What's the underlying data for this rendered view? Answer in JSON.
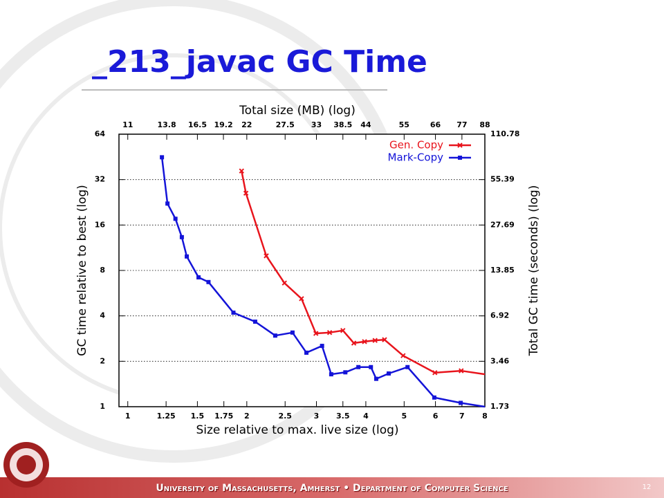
{
  "slide": {
    "title": "_213_javac GC Time",
    "footer": "University of Massachusetts, Amherst • Department of Computer Science",
    "page_number": "12"
  },
  "chart_data": {
    "type": "line",
    "xlabel": "Size relative to max. live size (log)",
    "ylabel": "GC time relative to best (log)",
    "x2label": "Total size (MB) (log)",
    "y2label": "Total GC time (seconds) (log)",
    "xlog": true,
    "ylog": true,
    "grid": true,
    "legend": "top right",
    "xlim": [
      0.95,
      8
    ],
    "xticks": [
      1,
      1.25,
      1.5,
      1.75,
      2,
      2.5,
      3,
      3.5,
      4,
      5,
      6,
      7,
      8
    ],
    "ylim": [
      1,
      64
    ],
    "yticks": [
      1,
      2,
      4,
      8,
      16,
      32,
      64
    ],
    "x2lim": [
      10.45,
      88
    ],
    "x2ticks": [
      11,
      13.8,
      16.5,
      19.2,
      22,
      27.5,
      33,
      38.5,
      44,
      55,
      66,
      77,
      88
    ],
    "y2lim": [
      1.73,
      110.78
    ],
    "y2ticks": [
      1.73,
      3.46,
      6.92,
      13.85,
      27.69,
      55.39,
      110.78
    ],
    "series": [
      {
        "name": "Gen. Copy",
        "color": "#e8141c",
        "marker": "x",
        "x": [
          1.94,
          1.99,
          2.24,
          2.49,
          2.75,
          2.99,
          3.24,
          3.5,
          3.73,
          3.97,
          4.22,
          4.46,
          4.97,
          5.98,
          6.97,
          8
        ],
        "values": [
          36.5,
          26,
          10,
          6.6,
          5.2,
          3.06,
          3.1,
          3.2,
          2.64,
          2.7,
          2.75,
          2.78,
          2.18,
          1.68,
          1.73,
          1.64
        ]
      },
      {
        "name": "Mark-Copy",
        "color": "#1414d8",
        "marker": "square",
        "x": [
          1.22,
          1.26,
          1.32,
          1.37,
          1.41,
          1.51,
          1.6,
          1.85,
          2.1,
          2.36,
          2.61,
          2.83,
          3.1,
          3.27,
          3.55,
          3.83,
          4.12,
          4.25,
          4.57,
          5.1,
          5.96,
          6.95,
          8
        ],
        "values": [
          45,
          22.2,
          17.6,
          13.3,
          9.9,
          7.2,
          6.7,
          4.2,
          3.66,
          2.96,
          3.1,
          2.28,
          2.53,
          1.64,
          1.69,
          1.83,
          1.83,
          1.53,
          1.66,
          1.83,
          1.15,
          1.06,
          1
        ]
      }
    ]
  }
}
